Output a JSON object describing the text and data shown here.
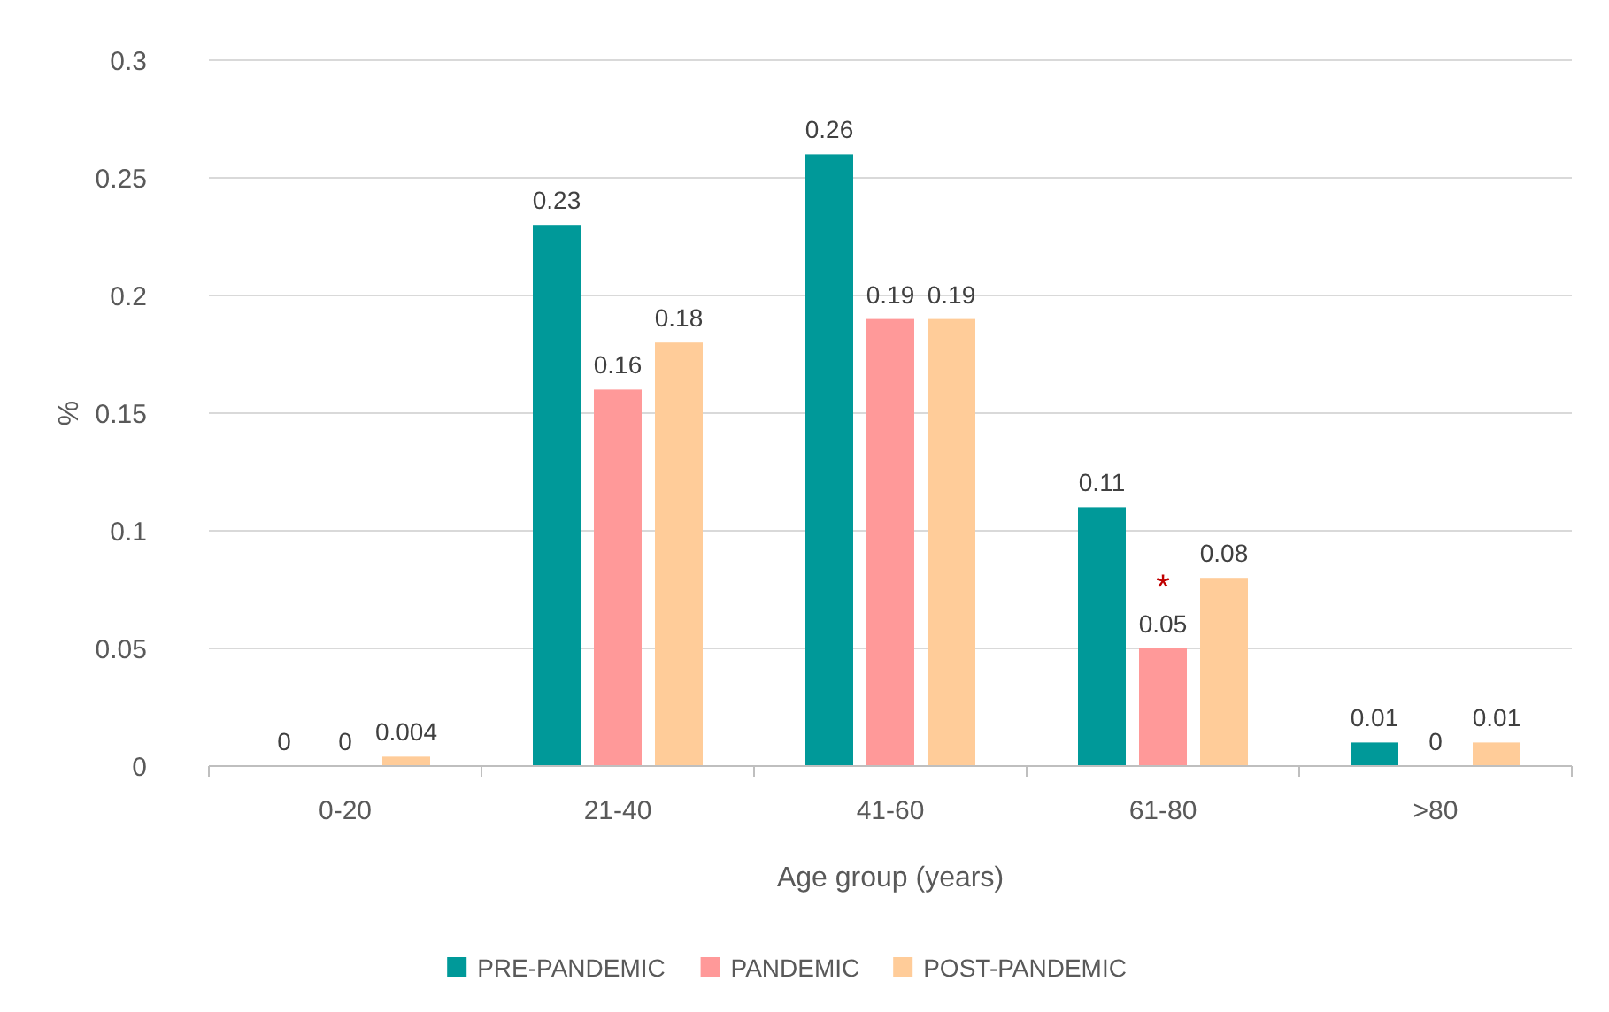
{
  "chart_data": {
    "type": "bar",
    "xlabel": "Age group (years)",
    "ylabel": "%",
    "categories": [
      "0-20",
      "21-40",
      "41-60",
      "61-80",
      ">80"
    ],
    "series": [
      {
        "name": "PRE-PANDEMIC",
        "color": "#009999",
        "values": [
          0,
          0.23,
          0.26,
          0.11,
          0.01
        ]
      },
      {
        "name": "PANDEMIC",
        "color": "#ff9999",
        "values": [
          0,
          0.16,
          0.19,
          0.05,
          0
        ]
      },
      {
        "name": "POST-PANDEMIC",
        "color": "#ffcc99",
        "values": [
          0.004,
          0.18,
          0.19,
          0.08,
          0.01
        ]
      }
    ],
    "ylim": [
      0,
      0.3
    ],
    "yticks": [
      0,
      0.05,
      0.1,
      0.15,
      0.2,
      0.25,
      0.3
    ],
    "grid": "y",
    "legend": "bottom",
    "data_labels": true,
    "annotations": [
      {
        "text": "*",
        "x": "61-80",
        "y": 0.05
      }
    ]
  }
}
